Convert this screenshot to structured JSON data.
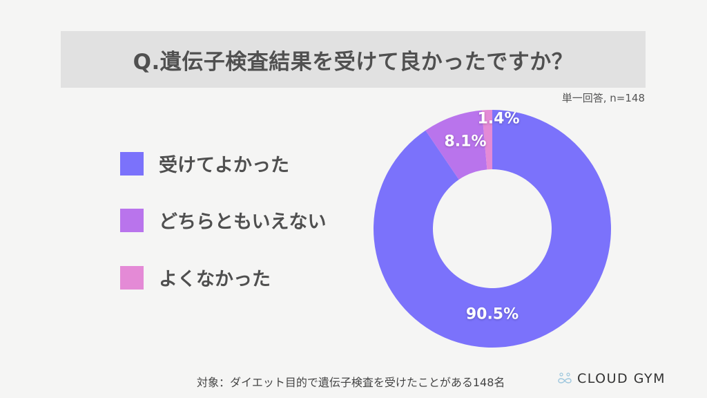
{
  "title": "Q.遺伝子検査結果を受けて良かったですか？",
  "sample_note": "単一回答, n=148",
  "footer_note": "対象：ダイエット目的で遺伝子検査を受けたことがある148名",
  "brand": {
    "name": "CLOUD GYM",
    "icon": "infinity-people-logo-icon"
  },
  "legend": [
    {
      "label": "受けてよかった",
      "color": "#7b72fb"
    },
    {
      "label": "どちらともいえない",
      "color": "#b974ec"
    },
    {
      "label": "よくなかった",
      "color": "#e48ad6"
    }
  ],
  "chart_data": {
    "type": "pie",
    "subtype": "donut",
    "title": "Q.遺伝子検査結果を受けて良かったですか？",
    "categories": [
      "受けてよかった",
      "どちらともいえない",
      "よくなかった"
    ],
    "values": [
      90.5,
      8.1,
      1.4
    ],
    "value_labels": [
      "90.5%",
      "8.1%",
      "1.4%"
    ],
    "colors": [
      "#7b72fb",
      "#b974ec",
      "#e48ad6"
    ],
    "unit": "%",
    "n": 148,
    "legend_position": "left",
    "start_angle": "12 o'clock",
    "direction": "clockwise"
  }
}
